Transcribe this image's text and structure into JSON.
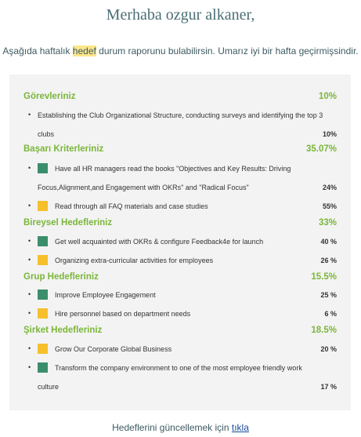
{
  "greeting": "Merhaba ozgur alkaner,",
  "intro": {
    "before": "Aşağıda haftalık ",
    "highlight": "hedef",
    "after": " durum raporunu bulabilirsin. Umarız iyi bir hafta geçirmişsindir."
  },
  "sections": [
    {
      "title": "Görevleriniz",
      "percent": "10%",
      "items": [
        {
          "line1": "Establishing the Club Organizational Structure, conducting surveys and identifying the top 3",
          "line2": "clubs",
          "percent": "10%",
          "color": ""
        }
      ]
    },
    {
      "title": "Başarı Kriterleriniz",
      "percent": "35.07%",
      "items": [
        {
          "line1": "Have all HR managers read the books \"Objectives and Key Results: Driving",
          "line2": "Focus,Alignment,and Engagement with OKRs\" and \"Radical Focus\"",
          "percent": "24%",
          "color": "#3b8e6c"
        },
        {
          "line1": "Read through all FAQ materials and case studies",
          "percent": "55%",
          "color": "#f5c02c"
        }
      ]
    },
    {
      "title": "Bireysel Hedefleriniz",
      "percent": "33%",
      "items": [
        {
          "line1": "Get well acquainted with OKRs & configure Feedback4e for launch",
          "percent": "40 %",
          "color": "#3b8e6c"
        },
        {
          "line1": "Organizing extra-curricular activities for employees",
          "percent": "26 %",
          "color": "#f5c02c"
        }
      ]
    },
    {
      "title": "Grup Hedefleriniz",
      "percent": "15.5%",
      "items": [
        {
          "line1": "Improve Employee Engagement",
          "percent": "25 %",
          "color": "#3b8e6c"
        },
        {
          "line1": "Hire personnel based on department needs",
          "percent": "6 %",
          "color": "#f5c02c"
        }
      ]
    },
    {
      "title": "Şirket Hedefleriniz",
      "percent": "18.5%",
      "items": [
        {
          "line1": "Grow Our Corporate Global Business",
          "percent": "20 %",
          "color": "#f5c02c"
        },
        {
          "line1": "Transform the company environment to one of the most employee friendly work",
          "line2": "culture",
          "percent": "17 %",
          "color": "#3b8e6c"
        }
      ]
    }
  ],
  "footer": {
    "text": "Hedeflerini güncellemek için ",
    "link": "tıkla"
  }
}
